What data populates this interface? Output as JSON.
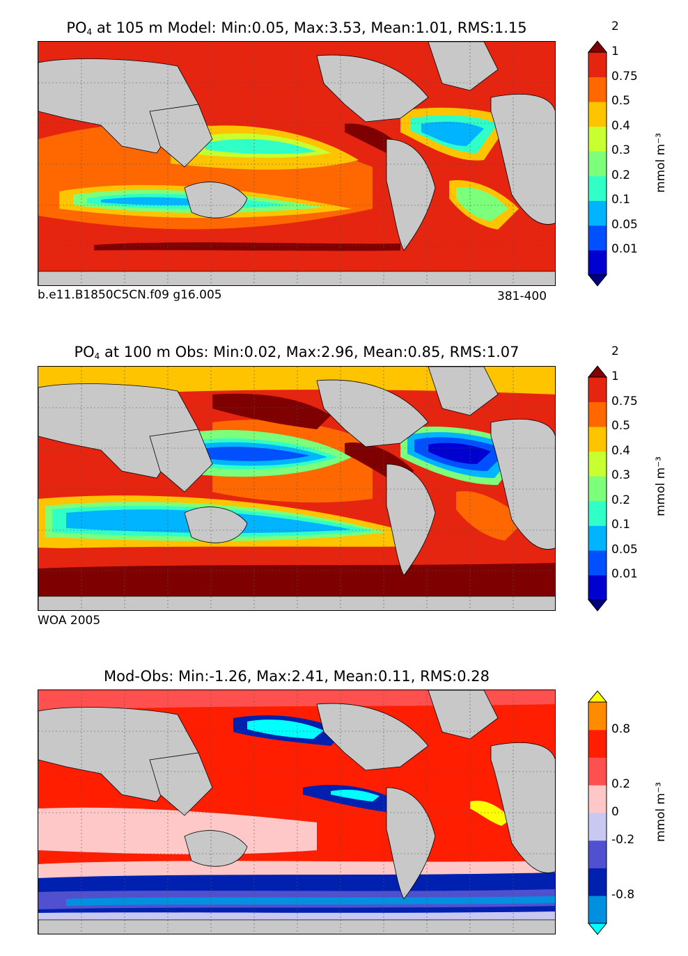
{
  "chart_data": [
    {
      "type": "heatmap",
      "title": "PO4 at 105 m Model: Min:0.05, Max:3.53, Mean:1.01, RMS:1.15",
      "title_parts": {
        "species": "PO",
        "subscript": "4",
        "rest": " at 105 m Model: Min:0.05, Max:3.53, Mean:1.01, RMS:1.15"
      },
      "variable": "PO4",
      "depth_m": 105,
      "source": "Model",
      "stats": {
        "min": 0.05,
        "max": 3.53,
        "mean": 1.01,
        "rms": 1.15
      },
      "footnote_left": "b.e11.B1850C5CN.f09 g16.005",
      "footnote_right": "381-400",
      "colorbar": {
        "unit_label": "mmol m⁻³",
        "levels": [
          "0.01",
          "0.05",
          "0.1",
          "0.2",
          "0.3",
          "0.4",
          "0.5",
          "0.75",
          "1",
          "2"
        ],
        "colors": [
          "#00007f",
          "#0000d0",
          "#0050ff",
          "#00b4ff",
          "#30ffc8",
          "#7cff7a",
          "#c8ff30",
          "#ffc400",
          "#ff6800",
          "#e52510",
          "#7f0000"
        ]
      }
    },
    {
      "type": "heatmap",
      "title": "PO4 at 100 m Obs: Min:0.02, Max:2.96, Mean:0.85, RMS:1.07",
      "title_parts": {
        "species": "PO",
        "subscript": "4",
        "rest": " at 100 m Obs: Min:0.02, Max:2.96, Mean:0.85, RMS:1.07"
      },
      "variable": "PO4",
      "depth_m": 100,
      "source": "Obs",
      "stats": {
        "min": 0.02,
        "max": 2.96,
        "mean": 0.85,
        "rms": 1.07
      },
      "footnote_left": "WOA 2005",
      "colorbar": {
        "unit_label": "mmol m⁻³",
        "levels": [
          "0.01",
          "0.05",
          "0.1",
          "0.2",
          "0.3",
          "0.4",
          "0.5",
          "0.75",
          "1",
          "2"
        ],
        "colors": [
          "#00007f",
          "#0000d0",
          "#0050ff",
          "#00b4ff",
          "#30ffc8",
          "#7cff7a",
          "#c8ff30",
          "#ffc400",
          "#ff6800",
          "#e52510",
          "#7f0000"
        ]
      }
    },
    {
      "type": "heatmap",
      "title": "Mod-Obs: Min:-1.26, Max:2.41, Mean:0.11, RMS:0.28",
      "source": "Mod-Obs",
      "stats": {
        "min": -1.26,
        "max": 2.41,
        "mean": 0.11,
        "rms": 0.28
      },
      "colorbar": {
        "unit_label": "mmol m⁻³",
        "labels": [
          "-0.8",
          "-0.2",
          "0",
          "0.2",
          "0.8"
        ],
        "colors": [
          "#00ffff",
          "#0090e0",
          "#0020b0",
          "#5050d0",
          "#c8c8f0",
          "#ffc8c8",
          "#ff5050",
          "#ff1e00",
          "#ff8c00",
          "#ffff00"
        ]
      }
    }
  ],
  "colors": {
    "land": "#c8c8c8",
    "background": "#ffffff"
  }
}
